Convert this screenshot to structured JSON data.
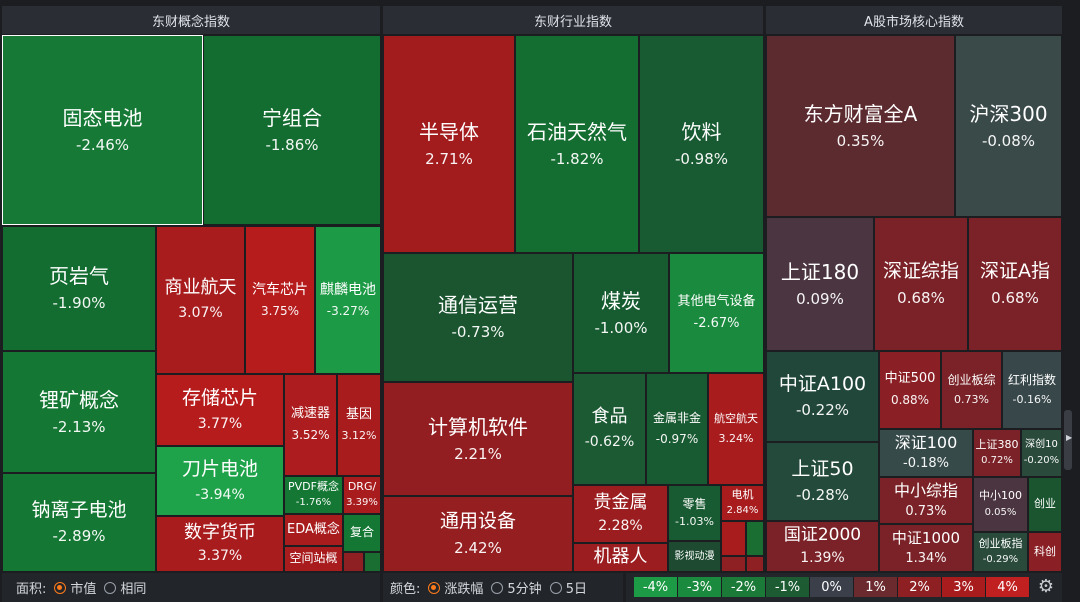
{
  "headers": {
    "concept": "东财概念指数",
    "industry": "东财行业指数",
    "market": "A股市场核心指数"
  },
  "tiles": {
    "gutai": {
      "name": "固态电池",
      "value": "-2.46%"
    },
    "ningzuhe": {
      "name": "宁组合",
      "value": "-1.86%"
    },
    "yeyanqi": {
      "name": "页岩气",
      "value": "-1.90%"
    },
    "shangyehangtian": {
      "name": "商业航天",
      "value": "3.07%"
    },
    "qichexinpian": {
      "name": "汽车芯片",
      "value": "3.75%"
    },
    "qilindianchi": {
      "name": "麒麟电池",
      "value": "-3.27%"
    },
    "likuang": {
      "name": "锂矿概念",
      "value": "-2.13%"
    },
    "cunchuxinpian": {
      "name": "存储芯片",
      "value": "3.77%"
    },
    "jiansuqi": {
      "name": "减速器",
      "value": "3.52%"
    },
    "jiyin": {
      "name": "基因",
      "value": "3.12%"
    },
    "daopiandianchi": {
      "name": "刀片电池",
      "value": "-3.94%"
    },
    "pvdf": {
      "name": "PVDF概念",
      "value": "-1.76%"
    },
    "drg": {
      "name": "DRG/",
      "value": "3.39%"
    },
    "nalizi": {
      "name": "钠离子电池",
      "value": "-2.89%"
    },
    "shuzihuobi": {
      "name": "数字货币",
      "value": "3.37%"
    },
    "eda": {
      "name": "EDA概念",
      "value": ""
    },
    "fuhe": {
      "name": "复合",
      "value": ""
    },
    "kongjianzhan": {
      "name": "空间站概",
      "value": ""
    },
    "bandaoti": {
      "name": "半导体",
      "value": "2.71%"
    },
    "shiyou": {
      "name": "石油天然气",
      "value": "-1.82%"
    },
    "yinliao": {
      "name": "饮料",
      "value": "-0.98%"
    },
    "tongxin": {
      "name": "通信运营",
      "value": "-0.73%"
    },
    "meitan": {
      "name": "煤炭",
      "value": "-1.00%"
    },
    "qitadianqi": {
      "name": "其他电气设备",
      "value": "-2.67%"
    },
    "jisuanji": {
      "name": "计算机软件",
      "value": "2.21%"
    },
    "shipin": {
      "name": "食品",
      "value": "-0.62%"
    },
    "jinshu": {
      "name": "金属非金",
      "value": "-0.97%"
    },
    "hangkong": {
      "name": "航空航天",
      "value": "3.24%"
    },
    "tongyong": {
      "name": "通用设备",
      "value": "2.42%"
    },
    "guijinshu": {
      "name": "贵金属",
      "value": "2.28%"
    },
    "lingshou": {
      "name": "零售",
      "value": "-1.03%"
    },
    "dianji": {
      "name": "电机",
      "value": "2.84%"
    },
    "jiqiren": {
      "name": "机器人",
      "value": ""
    },
    "yingshi": {
      "name": "影视动漫",
      "value": ""
    },
    "dongcaiA": {
      "name": "东方财富全A",
      "value": "0.35%"
    },
    "hs300": {
      "name": "沪深300",
      "value": "-0.08%"
    },
    "sz180": {
      "name": "上证180",
      "value": "0.09%"
    },
    "szzz": {
      "name": "深证综指",
      "value": "0.68%"
    },
    "szA": {
      "name": "深证A指",
      "value": "0.68%"
    },
    "zzA100": {
      "name": "中证A100",
      "value": "-0.22%"
    },
    "zz500": {
      "name": "中证500",
      "value": "0.88%"
    },
    "cybz": {
      "name": "创业板综",
      "value": "0.73%"
    },
    "hlzs": {
      "name": "红利指数",
      "value": "-0.16%"
    },
    "sz100": {
      "name": "深证100",
      "value": "-0.18%"
    },
    "sz380": {
      "name": "上证380",
      "value": "0.72%"
    },
    "sc10": {
      "name": "深创10",
      "value": "-0.20%"
    },
    "sz50": {
      "name": "上证50",
      "value": "-0.28%"
    },
    "zxzz": {
      "name": "中小综指",
      "value": "0.73%"
    },
    "zx100": {
      "name": "中小100",
      "value": "0.05%"
    },
    "cyb": {
      "name": "创业",
      "value": ""
    },
    "gz2000": {
      "name": "国证2000",
      "value": "1.39%"
    },
    "zz1000": {
      "name": "中证1000",
      "value": "1.34%"
    },
    "cybzhi": {
      "name": "创业板指",
      "value": "-0.29%"
    },
    "kc": {
      "name": "科创",
      "value": ""
    }
  },
  "controls": {
    "area_label": "面积:",
    "area_opt1": "市值",
    "area_opt2": "相同",
    "color_label": "颜色:",
    "color_opt1": "涨跌幅",
    "color_opt2": "5分钟",
    "color_opt3": "5日"
  },
  "legend": [
    "-4%",
    "-3%",
    "-2%",
    "-1%",
    "0%",
    "1%",
    "2%",
    "3%",
    "4%"
  ],
  "legend_colors": [
    "#1d9a45",
    "#1a8a3e",
    "#1b7a38",
    "#1d5c33",
    "#3a3f4a",
    "#6a2a2e",
    "#8e1f22",
    "#a81c1e",
    "#c0201f"
  ],
  "icons": {
    "settings": "gear-icon"
  }
}
